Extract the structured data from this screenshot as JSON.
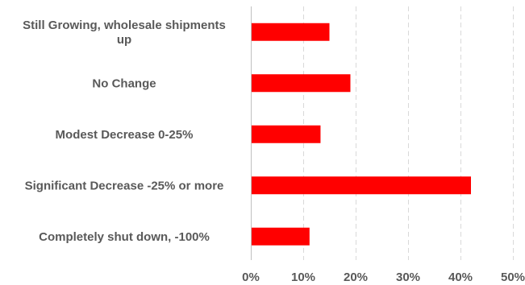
{
  "chart_data": {
    "type": "bar",
    "orientation": "horizontal",
    "title": "",
    "xlabel": "",
    "ylabel": "",
    "categories": [
      [
        "Still Growing, wholesale shipments",
        "up"
      ],
      [
        "No Change"
      ],
      [
        "Modest Decrease 0-25%"
      ],
      [
        "Significant Decrease -25% or more"
      ],
      [
        "Completely shut down, -100%"
      ]
    ],
    "values": [
      15,
      19,
      13.3,
      42,
      11.2
    ],
    "xlim": [
      0,
      50
    ],
    "xticks": [
      0,
      10,
      20,
      30,
      40,
      50
    ],
    "xtick_labels": [
      "0%",
      "10%",
      "20%",
      "30%",
      "40%",
      "50%"
    ],
    "grid": "vertical-dashed",
    "legend": "none",
    "bar_color": "#ff0000"
  }
}
